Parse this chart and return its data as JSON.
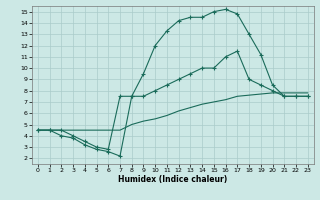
{
  "xlabel": "Humidex (Indice chaleur)",
  "bg_color": "#cce8e5",
  "grid_color": "#aaccca",
  "line_color": "#1a6b5a",
  "xlim_min": -0.5,
  "xlim_max": 23.5,
  "ylim_min": 1.5,
  "ylim_max": 15.5,
  "xticks": [
    0,
    1,
    2,
    3,
    4,
    5,
    6,
    7,
    8,
    9,
    10,
    11,
    12,
    13,
    14,
    15,
    16,
    17,
    18,
    19,
    20,
    21,
    22,
    23
  ],
  "yticks": [
    2,
    3,
    4,
    5,
    6,
    7,
    8,
    9,
    10,
    11,
    12,
    13,
    14,
    15
  ],
  "curve_top_x": [
    0,
    1,
    2,
    3,
    4,
    5,
    6,
    7,
    8,
    9,
    10,
    11,
    12,
    13,
    14,
    15,
    16,
    17,
    18,
    19,
    20,
    21,
    22,
    23
  ],
  "curve_top_y": [
    4.5,
    4.5,
    4.0,
    3.8,
    3.2,
    2.8,
    2.6,
    2.2,
    7.5,
    9.5,
    12.0,
    13.3,
    14.2,
    14.5,
    14.5,
    15.0,
    15.2,
    14.8,
    13.0,
    11.2,
    8.5,
    7.5,
    7.5,
    7.5
  ],
  "curve_mid_x": [
    0,
    1,
    2,
    3,
    4,
    5,
    6,
    7,
    8,
    9,
    10,
    11,
    12,
    13,
    14,
    15,
    16,
    17,
    18,
    19,
    20,
    21,
    22,
    23
  ],
  "curve_mid_y": [
    4.5,
    4.5,
    4.5,
    4.0,
    3.5,
    3.0,
    2.8,
    7.5,
    7.5,
    7.5,
    8.0,
    8.5,
    9.0,
    9.5,
    10.0,
    10.0,
    11.0,
    11.5,
    9.0,
    8.5,
    8.0,
    7.5,
    7.5,
    7.5
  ],
  "curve_bot_x": [
    0,
    1,
    2,
    3,
    4,
    5,
    6,
    7,
    8,
    9,
    10,
    11,
    12,
    13,
    14,
    15,
    16,
    17,
    18,
    19,
    20,
    21,
    22,
    23
  ],
  "curve_bot_y": [
    4.5,
    4.5,
    4.5,
    4.5,
    4.5,
    4.5,
    4.5,
    4.5,
    5.0,
    5.3,
    5.5,
    5.8,
    6.2,
    6.5,
    6.8,
    7.0,
    7.2,
    7.5,
    7.6,
    7.7,
    7.8,
    7.8,
    7.8,
    7.8
  ]
}
